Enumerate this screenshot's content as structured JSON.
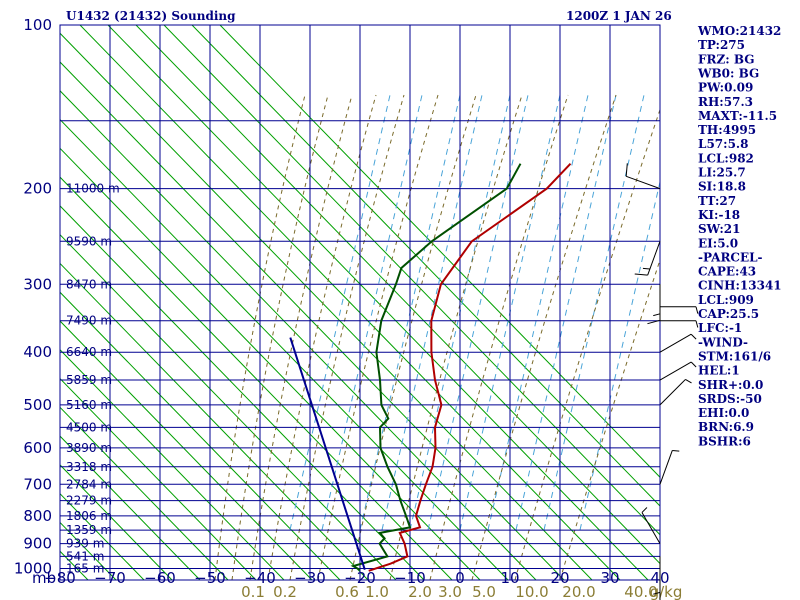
{
  "header": {
    "title_left": "U1432 (21432) Sounding",
    "title_right": "1200Z  1 JAN 26"
  },
  "indices": [
    "WMO:21432",
    "TP:275",
    "FRZ: BG",
    "WB0: BG",
    "PW:0.09",
    "RH:57.3",
    "MAXT:-11.5",
    "TH:4995",
    "L57:5.8",
    "LCL:982",
    "LI:25.7",
    "SI:18.8",
    "TT:27",
    "KI:-18",
    "SW:21",
    "EI:5.0",
    "-PARCEL-",
    "CAPE:43",
    "CINH:13341",
    "LCL:909",
    "CAP:25.5",
    "LFC:-1",
    "-WIND-",
    "STM:161/6",
    "HEL:1",
    "SHR+:0.0",
    "SRDS:-50",
    "EHI:0.0",
    "BRN:6.9",
    "BSHR:6"
  ],
  "chart_data": {
    "type": "line",
    "subtype": "skew-T log-p sounding",
    "pressure_axis": {
      "unit_label": "mb",
      "ticks": [
        100,
        200,
        300,
        400,
        500,
        600,
        700,
        800,
        900,
        1000
      ],
      "scale": "log",
      "range": [
        100,
        1050
      ]
    },
    "temperature_axis": {
      "ticks": [
        -80,
        -70,
        -60,
        -50,
        -40,
        -30,
        -20,
        -10,
        0,
        10,
        20,
        30,
        40
      ],
      "range": [
        -80,
        40
      ]
    },
    "mixing_ratio_labels": [
      "0.1",
      "0.2",
      "0.6",
      "1.0",
      "2.0",
      "3.0",
      "5.0",
      "10.0",
      "20.0",
      "40.0",
      "g/kg"
    ],
    "height_labels": [
      {
        "text": "11000 m",
        "p": 200
      },
      {
        "text": "9590 m",
        "p": 250
      },
      {
        "text": "8470 m",
        "p": 300
      },
      {
        "text": "7490 m",
        "p": 350
      },
      {
        "text": "6640 m",
        "p": 400
      },
      {
        "text": "5859 m",
        "p": 450
      },
      {
        "text": "5160 m",
        "p": 500
      },
      {
        "text": "4500 m",
        "p": 550
      },
      {
        "text": "3890 m",
        "p": 600
      },
      {
        "text": "3318 m",
        "p": 650
      },
      {
        "text": "2784 m",
        "p": 700
      },
      {
        "text": "2279 m",
        "p": 750
      },
      {
        "text": "1806 m",
        "p": 800
      },
      {
        "text": "1359 m",
        "p": 850
      },
      {
        "text": "939 m",
        "p": 900
      },
      {
        "text": "541 m",
        "p": 950
      },
      {
        "text": "165 m",
        "p": 1000
      }
    ],
    "series": [
      {
        "role": "temperature",
        "color": "#b00000",
        "points": [
          [
            180,
            -57
          ],
          [
            200,
            -57
          ],
          [
            250,
            -62
          ],
          [
            300,
            -60
          ],
          [
            350,
            -55
          ],
          [
            400,
            -49
          ],
          [
            450,
            -43
          ],
          [
            500,
            -37
          ],
          [
            550,
            -34
          ],
          [
            600,
            -30
          ],
          [
            650,
            -27
          ],
          [
            700,
            -25
          ],
          [
            750,
            -23
          ],
          [
            800,
            -21
          ],
          [
            840,
            -18
          ],
          [
            860,
            -21
          ],
          [
            900,
            -18
          ],
          [
            950,
            -15
          ],
          [
            980,
            -17
          ],
          [
            1010,
            -20
          ]
        ]
      },
      {
        "role": "dewpoint",
        "color": "#005000",
        "points": [
          [
            180,
            -67
          ],
          [
            200,
            -65
          ],
          [
            250,
            -70
          ],
          [
            280,
            -71
          ],
          [
            300,
            -69
          ],
          [
            350,
            -65
          ],
          [
            400,
            -60
          ],
          [
            450,
            -54
          ],
          [
            500,
            -49
          ],
          [
            530,
            -45
          ],
          [
            550,
            -45
          ],
          [
            600,
            -41
          ],
          [
            650,
            -36
          ],
          [
            700,
            -31
          ],
          [
            750,
            -27
          ],
          [
            800,
            -23
          ],
          [
            840,
            -20
          ],
          [
            860,
            -25
          ],
          [
            880,
            -23
          ],
          [
            900,
            -23
          ],
          [
            950,
            -19
          ],
          [
            990,
            -24
          ],
          [
            1005,
            -22
          ]
        ]
      },
      {
        "role": "parcel path",
        "color": "#000090",
        "points": [
          [
            376,
            -80
          ],
          [
            1005,
            -21
          ]
        ]
      }
    ],
    "wind_barbs": [
      {
        "p": 200,
        "dir": 290,
        "kt": 10
      },
      {
        "p": 250,
        "dir": 200,
        "kt": 15
      },
      {
        "p": 300,
        "dir": 180,
        "kt": 15
      },
      {
        "p": 330,
        "dir": 90,
        "kt": 5
      },
      {
        "p": 350,
        "dir": 90,
        "kt": 5
      },
      {
        "p": 400,
        "dir": 60,
        "kt": 5
      },
      {
        "p": 450,
        "dir": 60,
        "kt": 5
      },
      {
        "p": 500,
        "dir": 45,
        "kt": 5
      },
      {
        "p": 700,
        "dir": 20,
        "kt": 5
      },
      {
        "p": 900,
        "dir": 330,
        "kt": 5
      },
      {
        "p": 950,
        "dir": 180,
        "kt": 5
      },
      {
        "p": 1000,
        "dir": 180,
        "kt": 5
      }
    ],
    "colors": {
      "isobar": "#000090",
      "isotherm": "#000090",
      "dry_adiabat": "#00a000",
      "moist_adiabat": "#7a6a2a",
      "mixing_ratio": "#4aa4d8",
      "temperature": "#b00000",
      "dewpoint": "#005000",
      "parcel": "#000090"
    }
  }
}
